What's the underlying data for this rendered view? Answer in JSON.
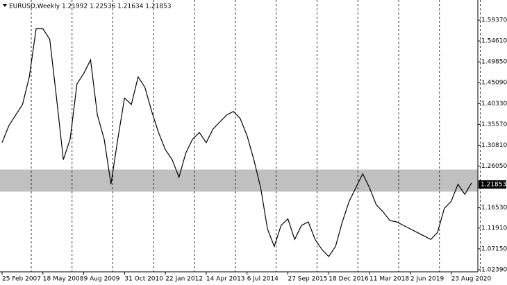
{
  "chart_data": {
    "type": "line",
    "title": "EURUSD,Weekly",
    "subtitle": "1.21992 1.22536 1.21634 1.21853",
    "categories": [
      "25 Feb 2007",
      null,
      null,
      null,
      null,
      null,
      "18 May 2008",
      null,
      null,
      null,
      null,
      null,
      "9 Aug 2009",
      null,
      null,
      null,
      null,
      null,
      "31 Oct 2010",
      null,
      null,
      null,
      null,
      null,
      "22 Jan 2012",
      null,
      null,
      null,
      null,
      null,
      "14 Apr 2013",
      null,
      null,
      null,
      null,
      null,
      "6 Jul 2014",
      null,
      null,
      null,
      null,
      null,
      "27 Sep 2015",
      null,
      null,
      null,
      null,
      null,
      "18 Dec 2016",
      null,
      null,
      null,
      null,
      null,
      "11 Mar 2018",
      null,
      null,
      null,
      null,
      null,
      "2 Jun 2019",
      null,
      null,
      null,
      null,
      null,
      "23 Aug 2020",
      null,
      null,
      null
    ],
    "series": [
      {
        "name": "EURUSD",
        "color": "#000000",
        "values": [
          1.314,
          1.353,
          1.377,
          1.401,
          1.464,
          1.574,
          1.574,
          1.55,
          1.416,
          1.275,
          1.322,
          1.448,
          1.472,
          1.503,
          1.377,
          1.322,
          1.219,
          1.322,
          1.416,
          1.401,
          1.464,
          1.44,
          1.385,
          1.337,
          1.298,
          1.275,
          1.235,
          1.29,
          1.322,
          1.337,
          1.314,
          1.345,
          1.361,
          1.377,
          1.385,
          1.369,
          1.33,
          1.275,
          1.211,
          1.117,
          1.077,
          1.125,
          1.14,
          1.093,
          1.125,
          1.133,
          1.093,
          1.07,
          1.054,
          1.077,
          1.133,
          1.18,
          1.211,
          1.243,
          1.211,
          1.172,
          1.156,
          1.136,
          1.133,
          1.125,
          1.117,
          1.109,
          1.101,
          1.093,
          1.109,
          1.164,
          1.18,
          1.219,
          1.196,
          1.222
        ]
      }
    ],
    "ylim": [
      1.019,
      1.627
    ],
    "yticks": [
      {
        "value": 1.0239,
        "label": "1.02390"
      },
      {
        "value": 1.0715,
        "label": "1.07150"
      },
      {
        "value": 1.1191,
        "label": "1.11910"
      },
      {
        "value": 1.1653,
        "label": "1.16530"
      },
      {
        "value": 1.2605,
        "label": "1.26050"
      },
      {
        "value": 1.3081,
        "label": "1.30810"
      },
      {
        "value": 1.3557,
        "label": "1.35570"
      },
      {
        "value": 1.4033,
        "label": "1.40330"
      },
      {
        "value": 1.4509,
        "label": "1.45090"
      },
      {
        "value": 1.4985,
        "label": "1.49850"
      },
      {
        "value": 1.5461,
        "label": "1.54610"
      },
      {
        "value": 1.5937,
        "label": "1.59370"
      }
    ],
    "last_price": {
      "value": 1.21853,
      "label": "1.21853"
    },
    "bands": [
      {
        "from": 1.202,
        "to": 1.2525,
        "color": "#c0c0c0"
      }
    ],
    "grid": true
  }
}
